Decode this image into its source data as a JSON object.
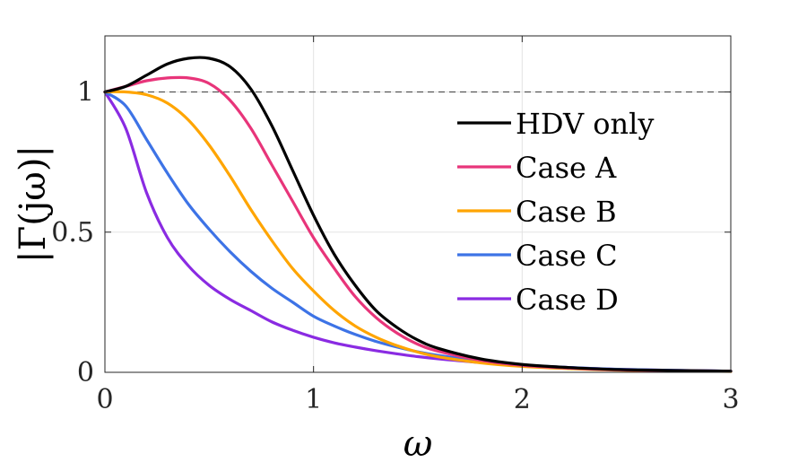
{
  "chart_data": {
    "type": "line",
    "xlabel": "ω",
    "ylabel": "|Γ(jω)|",
    "xlim": [
      0,
      3
    ],
    "ylim": [
      0,
      1.2
    ],
    "xticks": [
      0,
      1,
      2,
      3
    ],
    "xtick_labels": [
      "0",
      "1",
      "2",
      "3"
    ],
    "yticks": [
      0,
      0.5,
      1
    ],
    "ytick_labels": [
      "0",
      "0.5",
      "1"
    ],
    "grid": true,
    "legend_position": "right",
    "reference_line": {
      "y": 1,
      "style": "dashed"
    },
    "x": [
      0,
      0.1,
      0.2,
      0.3,
      0.4,
      0.5,
      0.6,
      0.7,
      0.8,
      0.9,
      1.0,
      1.1,
      1.2,
      1.3,
      1.4,
      1.5,
      1.6,
      1.8,
      2.0,
      2.2,
      2.5,
      3.0
    ],
    "series": [
      {
        "name": "HDV only",
        "color": "#000000",
        "values": [
          1.0,
          1.02,
          1.06,
          1.1,
          1.12,
          1.12,
          1.09,
          1.01,
          0.88,
          0.72,
          0.56,
          0.42,
          0.31,
          0.22,
          0.16,
          0.115,
          0.085,
          0.048,
          0.028,
          0.018,
          0.009,
          0.004
        ]
      },
      {
        "name": "Case A",
        "color": "#E8357A",
        "values": [
          1.0,
          1.02,
          1.04,
          1.05,
          1.05,
          1.03,
          0.97,
          0.87,
          0.74,
          0.61,
          0.48,
          0.37,
          0.27,
          0.195,
          0.14,
          0.1,
          0.075,
          0.043,
          0.025,
          0.016,
          0.008,
          0.004
        ]
      },
      {
        "name": "Case B",
        "color": "#FFA500",
        "values": [
          1.0,
          1.0,
          0.99,
          0.96,
          0.9,
          0.81,
          0.7,
          0.58,
          0.47,
          0.37,
          0.29,
          0.22,
          0.165,
          0.125,
          0.095,
          0.072,
          0.055,
          0.034,
          0.021,
          0.014,
          0.007,
          0.003
        ]
      },
      {
        "name": "Case C",
        "color": "#3D73E6",
        "values": [
          1.0,
          0.95,
          0.83,
          0.71,
          0.6,
          0.51,
          0.43,
          0.36,
          0.3,
          0.25,
          0.2,
          0.165,
          0.135,
          0.11,
          0.09,
          0.073,
          0.06,
          0.04,
          0.027,
          0.018,
          0.01,
          0.004
        ]
      },
      {
        "name": "Case D",
        "color": "#8A2BE2",
        "values": [
          1.0,
          0.87,
          0.64,
          0.48,
          0.38,
          0.31,
          0.26,
          0.22,
          0.18,
          0.15,
          0.125,
          0.105,
          0.09,
          0.077,
          0.066,
          0.056,
          0.048,
          0.035,
          0.025,
          0.018,
          0.01,
          0.004
        ]
      }
    ]
  }
}
